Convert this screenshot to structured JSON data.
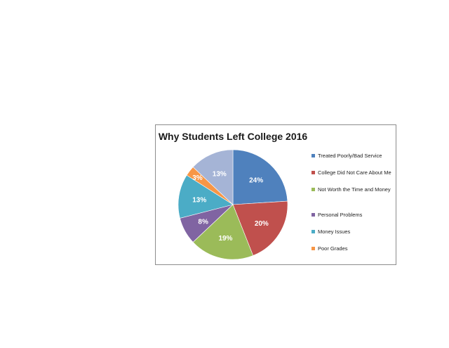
{
  "chart_data": {
    "type": "pie",
    "title": "Why Students Left College 2016",
    "legend_position": "right",
    "slices": [
      {
        "name": "Treated Poorly/Bad Service",
        "value": 24,
        "label": "24%",
        "color": "#4f81bd"
      },
      {
        "name": "College Did Not Care About Me",
        "value": 20,
        "label": "20%",
        "color": "#c0504d"
      },
      {
        "name": "Not Worth the Time and Money",
        "value": 19,
        "label": "19%",
        "color": "#9bbb59"
      },
      {
        "name": "Personal Problems",
        "value": 8,
        "label": "8%",
        "color": "#8064a2"
      },
      {
        "name": "Money Issues",
        "value": 13,
        "label": "13%",
        "color": "#4bacc6"
      },
      {
        "name": "Poor Grades",
        "value": 3,
        "label": "3%",
        "color": "#f79646"
      },
      {
        "name": "",
        "value": 13,
        "label": "13%",
        "color": "#a5b4d6"
      }
    ]
  }
}
